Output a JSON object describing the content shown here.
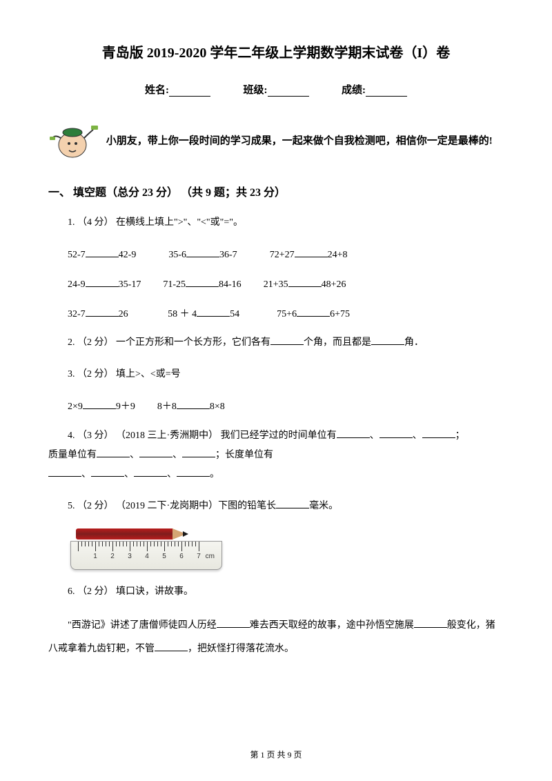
{
  "title": "青岛版 2019-2020 学年二年级上学期数学期末试卷（I）卷",
  "info": {
    "name_label": "姓名:",
    "class_label": "班级:",
    "score_label": "成绩:"
  },
  "intro": "小朋友，带上你一段时间的学习成果，一起来做个自我检测吧，相信你一定是最棒的!",
  "section1": {
    "heading": "一、 填空题（总分 23 分） （共 9 题；共 23 分）"
  },
  "q1": {
    "stem": "1. （4 分） 在横线上填上\">\"、\"<\"或\"=\"。",
    "r1a": "52-7",
    "r1b": "42-9",
    "r1c": "35-6",
    "r1d": "36-7",
    "r1e": "72+27",
    "r1f": "24+8",
    "r2a": "24-9",
    "r2b": "35-17",
    "r2c": "71-25",
    "r2d": "84-16",
    "r2e": "21+35",
    "r2f": "48+26",
    "r3a": "32-7",
    "r3b": "26",
    "r3c": "58 ＋ 4",
    "r3d": "54",
    "r3e": "75+6",
    "r3f": "6+75"
  },
  "q2": {
    "text_a": "2. （2 分） 一个正方形和一个长方形，它们各有",
    "text_b": "个角，而且都是",
    "text_c": "角．"
  },
  "q3": {
    "stem": "3. （2 分） 填上>、<或=号",
    "a": "2×9",
    "b": "9＋9",
    "c": "8＋8",
    "d": "8×8"
  },
  "q4": {
    "text_a": "4. （3 分） （2018 三上·秀洲期中） 我们已经学过的时间单位有",
    "text_b": "质量单位有",
    "text_c": "；长度单位有"
  },
  "q5": {
    "text_a": "5. （2 分） （2019 二下·龙岗期中）下图的铅笔长",
    "text_b": "毫米。"
  },
  "ruler": {
    "numbers": [
      "1",
      "2",
      "3",
      "4",
      "5",
      "6",
      "7"
    ],
    "unit": "cm"
  },
  "q6": {
    "stem": "6. （2 分） 填口诀，讲故事。",
    "text_a": "\"西游记》讲述了唐僧师徒四人历经",
    "text_b": "难去西天取经的故事，途中孙悟空施展",
    "text_c": "般变化，猪八戒拿着九齿钉耙，不管",
    "text_d": "，把妖怪打得落花流水。"
  },
  "footer": "第 1 页 共 9 页"
}
